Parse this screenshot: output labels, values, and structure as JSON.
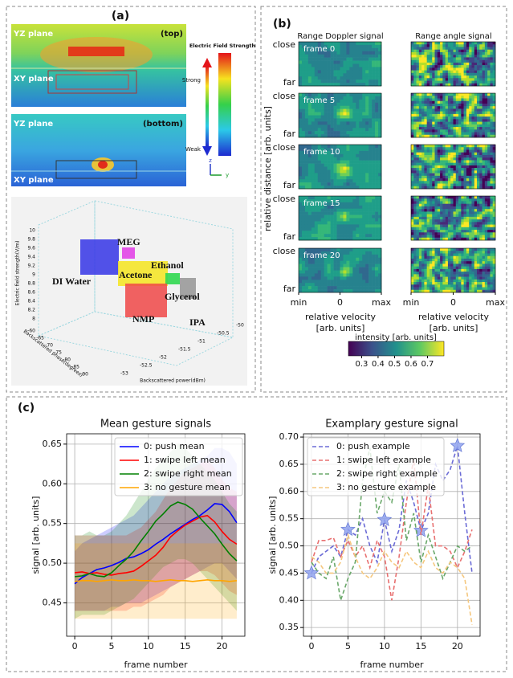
{
  "panel_a": {
    "label": "(a)",
    "top_sim": {
      "yz": "YZ plane",
      "xy": "XY plane",
      "tag": "(top)"
    },
    "bottom_sim": {
      "yz": "YZ plane",
      "xy": "XY plane",
      "tag": "(bottom)"
    },
    "field_legend": {
      "title": "Electric Field Strength",
      "strong": "Strong",
      "weak": "Weak",
      "axis_z": "z",
      "axis_y": "y"
    },
    "scatter3d": {
      "z_label": "Electric field strength(V/m)",
      "x_label": "Backscattered phase(degrees)",
      "y_label": "Backscattered power(dBm)",
      "z_ticks": [
        "10",
        "9.8",
        "9.6",
        "9.4",
        "9.2",
        "9",
        "8.8",
        "8.6",
        "8.4",
        "8.2",
        "8"
      ],
      "x_ticks": [
        "-60",
        "-65",
        "-70",
        "-75",
        "-80",
        "-85",
        "-90"
      ],
      "y_ticks": [
        "-53",
        "-52.5",
        "-52",
        "-51.5",
        "-51",
        "-50.5",
        "-50"
      ],
      "clusters": [
        "DI Water",
        "MEG",
        "Acetone",
        "Ethanol",
        "Glycerol",
        "IPA",
        "NMP"
      ]
    }
  },
  "panel_b": {
    "label": "(b)",
    "col_titles": [
      "Range Doppler signal",
      "Range angle signal"
    ],
    "frames": [
      "frame 0",
      "frame 5",
      "frame 10",
      "frame 15",
      "frame 20"
    ],
    "close": "close",
    "far": "far",
    "y_label": "relative distance [arb. units]",
    "x_ticks": [
      "min",
      "0",
      "max"
    ],
    "x_label": "relative velocity",
    "x_unit": "[arb. units]",
    "colorbar": {
      "title": "intensity [arb. units]",
      "range": [
        0.22,
        0.8
      ],
      "ticks": [
        0.3,
        0.4,
        0.5,
        0.6,
        0.7
      ]
    }
  },
  "panel_c": {
    "label": "(c)"
  },
  "chart_data": [
    {
      "type": "line",
      "title": "Mean gesture signals",
      "x_label": "frame number",
      "y_label": "signal [arb. units]",
      "x": [
        0,
        1,
        2,
        3,
        4,
        5,
        6,
        7,
        8,
        9,
        10,
        11,
        12,
        13,
        14,
        15,
        16,
        17,
        18,
        19,
        20,
        21,
        22
      ],
      "xlim": [
        -1.1,
        23.1
      ],
      "xticks": [
        0,
        5,
        10,
        15,
        20
      ],
      "ylim": [
        0.408,
        0.663
      ],
      "yticks": [
        {
          "value": 0.45,
          "label": "0.45"
        },
        {
          "value": 0.5,
          "label": "0.50"
        },
        {
          "value": 0.55,
          "label": "0.55"
        },
        {
          "value": 0.6,
          "label": "0.60"
        },
        {
          "value": 0.65,
          "label": "0.65"
        }
      ],
      "grid": true,
      "legend": "upper right",
      "line_style": "solid",
      "series": [
        {
          "name": "0: push mean",
          "color": "#0000ff",
          "values": [
            0.474,
            0.482,
            0.487,
            0.492,
            0.494,
            0.497,
            0.501,
            0.506,
            0.508,
            0.512,
            0.517,
            0.524,
            0.53,
            0.537,
            0.543,
            0.549,
            0.555,
            0.56,
            0.567,
            0.575,
            0.574,
            0.565,
            0.551
          ],
          "lower": [
            0.44,
            0.44,
            0.44,
            0.44,
            0.44,
            0.445,
            0.445,
            0.45,
            0.45,
            0.45,
            0.455,
            0.46,
            0.465,
            0.47,
            0.475,
            0.48,
            0.485,
            0.49,
            0.495,
            0.5,
            0.5,
            0.49,
            0.48
          ],
          "upper": [
            0.515,
            0.525,
            0.53,
            0.535,
            0.54,
            0.545,
            0.55,
            0.555,
            0.56,
            0.57,
            0.58,
            0.59,
            0.6,
            0.61,
            0.615,
            0.62,
            0.625,
            0.63,
            0.635,
            0.645,
            0.645,
            0.64,
            0.625
          ]
        },
        {
          "name": "1: swipe left mean",
          "color": "#ff0000",
          "values": [
            0.488,
            0.489,
            0.487,
            0.488,
            0.486,
            0.485,
            0.487,
            0.488,
            0.49,
            0.496,
            0.503,
            0.51,
            0.52,
            0.533,
            0.541,
            0.548,
            0.553,
            0.558,
            0.56,
            0.552,
            0.54,
            0.53,
            0.524
          ],
          "lower": [
            0.44,
            0.44,
            0.44,
            0.44,
            0.44,
            0.44,
            0.44,
            0.44,
            0.445,
            0.445,
            0.45,
            0.455,
            0.46,
            0.47,
            0.475,
            0.48,
            0.485,
            0.49,
            0.49,
            0.485,
            0.475,
            0.465,
            0.46
          ],
          "upper": [
            0.535,
            0.535,
            0.535,
            0.535,
            0.535,
            0.535,
            0.535,
            0.535,
            0.54,
            0.545,
            0.555,
            0.565,
            0.58,
            0.595,
            0.605,
            0.615,
            0.62,
            0.625,
            0.63,
            0.62,
            0.605,
            0.595,
            0.59
          ]
        },
        {
          "name": "2: swipe right mean",
          "color": "#008000",
          "values": [
            0.483,
            0.484,
            0.487,
            0.484,
            0.483,
            0.488,
            0.497,
            0.505,
            0.515,
            0.528,
            0.54,
            0.553,
            0.562,
            0.572,
            0.577,
            0.574,
            0.568,
            0.557,
            0.547,
            0.537,
            0.524,
            0.512,
            0.503
          ],
          "lower": [
            0.43,
            0.435,
            0.435,
            0.435,
            0.435,
            0.44,
            0.445,
            0.45,
            0.455,
            0.465,
            0.475,
            0.485,
            0.495,
            0.5,
            0.505,
            0.505,
            0.5,
            0.49,
            0.48,
            0.47,
            0.46,
            0.45,
            0.44
          ],
          "upper": [
            0.535,
            0.535,
            0.54,
            0.535,
            0.535,
            0.54,
            0.55,
            0.56,
            0.575,
            0.59,
            0.605,
            0.62,
            0.63,
            0.64,
            0.65,
            0.645,
            0.635,
            0.625,
            0.615,
            0.605,
            0.59,
            0.575,
            0.565
          ]
        },
        {
          "name": "3: no gesture mean",
          "color": "#ffa500",
          "values": [
            0.477,
            0.478,
            0.478,
            0.477,
            0.478,
            0.479,
            0.478,
            0.478,
            0.479,
            0.478,
            0.478,
            0.477,
            0.478,
            0.479,
            0.478,
            0.478,
            0.477,
            0.478,
            0.479,
            0.478,
            0.478,
            0.477,
            0.478
          ],
          "lower": [
            0.43,
            0.43,
            0.43,
            0.43,
            0.43,
            0.43,
            0.43,
            0.43,
            0.43,
            0.43,
            0.43,
            0.43,
            0.43,
            0.43,
            0.43,
            0.43,
            0.43,
            0.43,
            0.43,
            0.43,
            0.43,
            0.43,
            0.43
          ],
          "upper": [
            0.525,
            0.525,
            0.525,
            0.525,
            0.525,
            0.525,
            0.525,
            0.525,
            0.525,
            0.525,
            0.525,
            0.525,
            0.525,
            0.525,
            0.525,
            0.525,
            0.525,
            0.525,
            0.525,
            0.525,
            0.525,
            0.525,
            0.525
          ]
        }
      ]
    },
    {
      "type": "line",
      "title": "Examplary gesture signal",
      "x_label": "frame number",
      "y_label": "signal [arb. units]",
      "x": [
        0,
        1,
        2,
        3,
        4,
        5,
        6,
        7,
        8,
        9,
        10,
        11,
        12,
        13,
        14,
        15,
        16,
        17,
        18,
        19,
        20,
        21,
        22
      ],
      "xlim": [
        -1.1,
        23.1
      ],
      "xticks": [
        0,
        5,
        10,
        15,
        20
      ],
      "ylim": [
        0.334,
        0.706
      ],
      "yticks": [
        {
          "value": 0.35,
          "label": "0.35"
        },
        {
          "value": 0.4,
          "label": "0.40"
        },
        {
          "value": 0.45,
          "label": "0.45"
        },
        {
          "value": 0.5,
          "label": "0.50"
        },
        {
          "value": 0.55,
          "label": "0.55"
        },
        {
          "value": 0.6,
          "label": "0.60"
        },
        {
          "value": 0.65,
          "label": "0.65"
        },
        {
          "value": 0.7,
          "label": "0.70"
        }
      ],
      "grid": true,
      "legend": "upper left",
      "line_style": "dashed",
      "series": [
        {
          "name": "0: push example",
          "color": "#6b6bd6",
          "star_x": [
            0,
            5,
            10,
            15,
            20
          ],
          "star_color": "#8fa2ee",
          "values": [
            0.45,
            0.48,
            0.49,
            0.5,
            0.48,
            0.53,
            0.52,
            0.55,
            0.5,
            0.47,
            0.548,
            0.49,
            0.53,
            0.62,
            0.58,
            0.528,
            0.56,
            0.65,
            0.62,
            0.64,
            0.684,
            0.56,
            0.45
          ]
        },
        {
          "name": "1: swipe left example",
          "color": "#e87070",
          "values": [
            0.47,
            0.51,
            0.51,
            0.515,
            0.48,
            0.51,
            0.48,
            0.5,
            0.46,
            0.51,
            0.48,
            0.4,
            0.48,
            0.58,
            0.66,
            0.52,
            0.61,
            0.5,
            0.5,
            0.49,
            0.46,
            0.49,
            0.53
          ]
        },
        {
          "name": "2: swipe right example",
          "color": "#6aa86a",
          "values": [
            0.47,
            0.45,
            0.44,
            0.48,
            0.4,
            0.44,
            0.47,
            0.62,
            0.68,
            0.56,
            0.6,
            0.58,
            0.65,
            0.51,
            0.56,
            0.47,
            0.52,
            0.48,
            0.44,
            0.47,
            0.5,
            0.49,
            0.5
          ]
        },
        {
          "name": "3: no gesture example",
          "color": "#f5c77e",
          "values": [
            0.48,
            0.47,
            0.45,
            0.45,
            0.47,
            0.52,
            0.48,
            0.45,
            0.44,
            0.46,
            0.49,
            0.47,
            0.46,
            0.49,
            0.47,
            0.46,
            0.49,
            0.46,
            0.45,
            0.47,
            0.46,
            0.44,
            0.355
          ]
        }
      ]
    }
  ]
}
